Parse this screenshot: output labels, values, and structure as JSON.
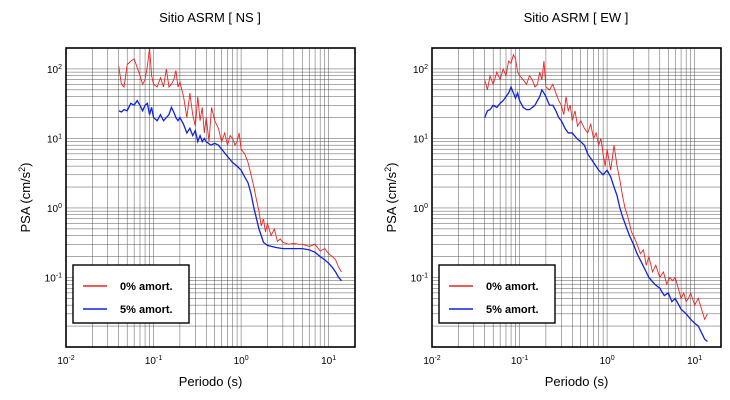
{
  "chart_data": [
    {
      "type": "line",
      "title": "Sitio ASRM [ NS ]",
      "xlabel": "Periodo (s)",
      "ylabel_main": "PSA (cm/s",
      "ylabel_sup": "2",
      "ylabel_close": ")",
      "x_scale": "log",
      "y_scale": "log",
      "xlim": [
        0.01,
        20
      ],
      "ylim": [
        0.01,
        200
      ],
      "grid": true,
      "legend_position": "lower-left",
      "x_ticks": [
        {
          "value": 0.01,
          "base": "10",
          "exp": "-2"
        },
        {
          "value": 0.1,
          "base": "10",
          "exp": "-1"
        },
        {
          "value": 1,
          "base": "10",
          "exp": "0"
        },
        {
          "value": 10,
          "base": "10",
          "exp": "1"
        }
      ],
      "y_ticks": [
        {
          "value": 0.1,
          "base": "10",
          "exp": "-1"
        },
        {
          "value": 1,
          "base": "10",
          "exp": "0"
        },
        {
          "value": 10,
          "base": "10",
          "exp": "1"
        },
        {
          "value": 100,
          "base": "10",
          "exp": "2"
        }
      ],
      "series": [
        {
          "name": "0% amort.",
          "color": "#ee2222",
          "x": [
            0.04,
            0.043,
            0.046,
            0.05,
            0.055,
            0.06,
            0.065,
            0.07,
            0.075,
            0.08,
            0.085,
            0.09,
            0.095,
            0.1,
            0.11,
            0.12,
            0.13,
            0.14,
            0.15,
            0.16,
            0.17,
            0.18,
            0.19,
            0.2,
            0.22,
            0.24,
            0.26,
            0.28,
            0.3,
            0.32,
            0.34,
            0.36,
            0.38,
            0.4,
            0.43,
            0.46,
            0.5,
            0.55,
            0.6,
            0.65,
            0.7,
            0.75,
            0.8,
            0.85,
            0.9,
            0.95,
            1.0,
            1.1,
            1.2,
            1.3,
            1.4,
            1.5,
            1.6,
            1.7,
            1.8,
            1.9,
            2.0,
            2.2,
            2.4,
            2.6,
            2.8,
            3.0,
            3.5,
            4.0,
            4.5,
            5.0,
            6.0,
            7.0,
            8.0,
            9.0,
            10.0,
            11.0,
            12.0,
            13.0,
            14.0
          ],
          "y": [
            110,
            60,
            55,
            115,
            130,
            140,
            105,
            80,
            60,
            70,
            110,
            200,
            80,
            60,
            55,
            75,
            55,
            100,
            55,
            60,
            70,
            95,
            55,
            65,
            40,
            20,
            45,
            22,
            15,
            40,
            18,
            28,
            12,
            20,
            9,
            28,
            18,
            14,
            9,
            12,
            8,
            11,
            10,
            8,
            9,
            12,
            7,
            6,
            4.5,
            3,
            2,
            1.3,
            0.9,
            0.55,
            0.7,
            0.45,
            0.6,
            0.4,
            0.5,
            0.33,
            0.36,
            0.32,
            0.3,
            0.31,
            0.3,
            0.3,
            0.28,
            0.3,
            0.24,
            0.26,
            0.22,
            0.2,
            0.18,
            0.14,
            0.12
          ]
        },
        {
          "name": "5% amort.",
          "color": "#1122dd",
          "x": [
            0.04,
            0.043,
            0.046,
            0.05,
            0.055,
            0.06,
            0.065,
            0.07,
            0.075,
            0.08,
            0.085,
            0.09,
            0.095,
            0.1,
            0.11,
            0.12,
            0.13,
            0.14,
            0.15,
            0.16,
            0.17,
            0.18,
            0.19,
            0.2,
            0.22,
            0.24,
            0.26,
            0.28,
            0.3,
            0.32,
            0.34,
            0.36,
            0.38,
            0.4,
            0.45,
            0.5,
            0.55,
            0.6,
            0.7,
            0.8,
            0.9,
            1.0,
            1.1,
            1.2,
            1.3,
            1.4,
            1.5,
            1.6,
            1.7,
            1.8,
            2.0,
            2.5,
            3.0,
            4.0,
            5.0,
            6.0,
            7.0,
            8.0,
            9.0,
            10.0,
            11.0,
            12.0,
            13.0,
            14.0
          ],
          "y": [
            25,
            24,
            26,
            25,
            32,
            30,
            35,
            30,
            25,
            30,
            32,
            22,
            28,
            20,
            18,
            22,
            18,
            20,
            22,
            28,
            24,
            20,
            18,
            20,
            16,
            12,
            14,
            11,
            13,
            9,
            11,
            9,
            10,
            9,
            8,
            8.5,
            8,
            7,
            5.5,
            4.5,
            4,
            3.5,
            2.8,
            2.3,
            1.6,
            1.0,
            0.7,
            0.5,
            0.4,
            0.32,
            0.29,
            0.27,
            0.26,
            0.26,
            0.26,
            0.25,
            0.23,
            0.2,
            0.18,
            0.16,
            0.14,
            0.12,
            0.1,
            0.09
          ]
        }
      ]
    },
    {
      "type": "line",
      "title": "Sitio ASRM [ EW ]",
      "xlabel": "Periodo (s)",
      "ylabel_main": "PSA (cm/s",
      "ylabel_sup": "2",
      "ylabel_close": ")",
      "x_scale": "log",
      "y_scale": "log",
      "xlim": [
        0.01,
        20
      ],
      "ylim": [
        0.01,
        200
      ],
      "grid": true,
      "legend_position": "lower-left",
      "x_ticks": [
        {
          "value": 0.01,
          "base": "10",
          "exp": "-2"
        },
        {
          "value": 0.1,
          "base": "10",
          "exp": "-1"
        },
        {
          "value": 1,
          "base": "10",
          "exp": "0"
        },
        {
          "value": 10,
          "base": "10",
          "exp": "1"
        }
      ],
      "y_ticks": [
        {
          "value": 0.1,
          "base": "10",
          "exp": "-1"
        },
        {
          "value": 1,
          "base": "10",
          "exp": "0"
        },
        {
          "value": 10,
          "base": "10",
          "exp": "1"
        },
        {
          "value": 100,
          "base": "10",
          "exp": "2"
        }
      ],
      "series": [
        {
          "name": "0% amort.",
          "color": "#ee2222",
          "x": [
            0.04,
            0.043,
            0.046,
            0.05,
            0.055,
            0.06,
            0.065,
            0.07,
            0.075,
            0.08,
            0.085,
            0.09,
            0.095,
            0.1,
            0.11,
            0.12,
            0.13,
            0.14,
            0.15,
            0.16,
            0.17,
            0.18,
            0.19,
            0.2,
            0.22,
            0.24,
            0.26,
            0.28,
            0.3,
            0.32,
            0.34,
            0.36,
            0.38,
            0.4,
            0.43,
            0.46,
            0.5,
            0.55,
            0.6,
            0.65,
            0.7,
            0.75,
            0.8,
            0.85,
            0.9,
            0.95,
            1.0,
            1.1,
            1.2,
            1.3,
            1.4,
            1.5,
            1.6,
            1.7,
            1.8,
            1.9,
            2.0,
            2.2,
            2.4,
            2.6,
            2.8,
            3.0,
            3.3,
            3.6,
            4.0,
            4.4,
            4.8,
            5.2,
            5.6,
            6.0,
            6.5,
            7.0,
            7.5,
            8.0,
            8.5,
            9.0,
            10.0,
            11.0,
            12.0,
            13.0,
            14.0
          ],
          "y": [
            70,
            50,
            80,
            60,
            90,
            70,
            100,
            80,
            130,
            120,
            160,
            140,
            90,
            80,
            70,
            60,
            80,
            70,
            55,
            60,
            90,
            70,
            130,
            55,
            50,
            60,
            45,
            35,
            30,
            22,
            40,
            25,
            30,
            18,
            25,
            15,
            18,
            14,
            12,
            16,
            10,
            12,
            8,
            10,
            6,
            4,
            7,
            3.5,
            8,
            4,
            2.5,
            1.5,
            1.0,
            0.8,
            0.6,
            0.45,
            0.4,
            0.3,
            0.22,
            0.25,
            0.15,
            0.2,
            0.12,
            0.15,
            0.1,
            0.12,
            0.08,
            0.1,
            0.09,
            0.1,
            0.07,
            0.05,
            0.06,
            0.045,
            0.05,
            0.06,
            0.04,
            0.05,
            0.035,
            0.025,
            0.03
          ]
        },
        {
          "name": "5% amort.",
          "color": "#1122dd",
          "x": [
            0.04,
            0.043,
            0.046,
            0.05,
            0.055,
            0.06,
            0.065,
            0.07,
            0.075,
            0.08,
            0.085,
            0.09,
            0.095,
            0.1,
            0.11,
            0.12,
            0.13,
            0.14,
            0.15,
            0.16,
            0.17,
            0.18,
            0.19,
            0.2,
            0.22,
            0.24,
            0.26,
            0.28,
            0.3,
            0.33,
            0.36,
            0.4,
            0.45,
            0.5,
            0.55,
            0.6,
            0.7,
            0.8,
            0.9,
            1.0,
            1.1,
            1.2,
            1.3,
            1.4,
            1.5,
            1.6,
            1.8,
            2.0,
            2.2,
            2.5,
            2.8,
            3.0,
            3.5,
            4.0,
            4.5,
            5.0,
            5.5,
            6.0,
            7.0,
            8.0,
            9.0,
            10.0,
            11.0,
            12.0,
            13.0,
            14.0
          ],
          "y": [
            20,
            25,
            26,
            30,
            28,
            32,
            35,
            40,
            45,
            55,
            45,
            38,
            45,
            35,
            28,
            26,
            26,
            28,
            30,
            35,
            40,
            50,
            45,
            40,
            30,
            30,
            25,
            20,
            18,
            14,
            12,
            12,
            10,
            9,
            8,
            6,
            4.5,
            3.5,
            3.0,
            3.5,
            2.8,
            2.0,
            1.5,
            1.0,
            0.75,
            0.6,
            0.4,
            0.3,
            0.22,
            0.16,
            0.12,
            0.1,
            0.08,
            0.07,
            0.055,
            0.06,
            0.045,
            0.05,
            0.035,
            0.03,
            0.025,
            0.022,
            0.02,
            0.016,
            0.013,
            0.012
          ]
        }
      ]
    }
  ]
}
